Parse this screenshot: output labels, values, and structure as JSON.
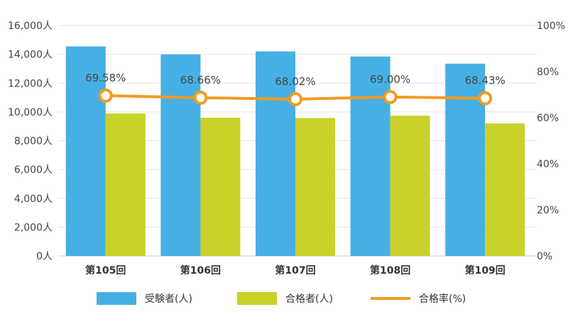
{
  "chart_data": {
    "type": "bar",
    "categories": [
      "第105回",
      "第106回",
      "第107回",
      "第108回",
      "第109回"
    ],
    "series": [
      {
        "name": "受験者(人)",
        "type": "bar",
        "axis": "left",
        "color": "#46b0e4",
        "values": [
          14550,
          14000,
          14200,
          13850,
          13350
        ]
      },
      {
        "name": "合格者(人)",
        "type": "bar",
        "axis": "left",
        "color": "#c8d22a",
        "values": [
          9890,
          9600,
          9580,
          9740,
          9200
        ]
      },
      {
        "name": "合格率(%)",
        "type": "line",
        "axis": "right",
        "color": "#f39a22",
        "values": [
          69.58,
          68.66,
          68.02,
          69.0,
          68.43
        ],
        "labels": [
          "69.58%",
          "68.66%",
          "68.02%",
          "69.00%",
          "68.43%"
        ]
      }
    ],
    "left_axis": {
      "ylim": [
        0,
        16000
      ],
      "ticks": [
        0,
        2000,
        4000,
        6000,
        8000,
        10000,
        12000,
        14000,
        16000
      ],
      "tick_labels": [
        "0人",
        "2,000人",
        "4,000人",
        "6,000人",
        "8,000人",
        "10,000人",
        "12,000人",
        "14,000人",
        "16,000人"
      ]
    },
    "right_axis": {
      "ylim": [
        0,
        100
      ],
      "ticks": [
        0,
        20,
        40,
        60,
        80,
        100
      ],
      "tick_labels": [
        "0%",
        "20%",
        "40%",
        "60%",
        "80%",
        "100%"
      ]
    },
    "grid": true,
    "legend_position": "bottom-center"
  }
}
